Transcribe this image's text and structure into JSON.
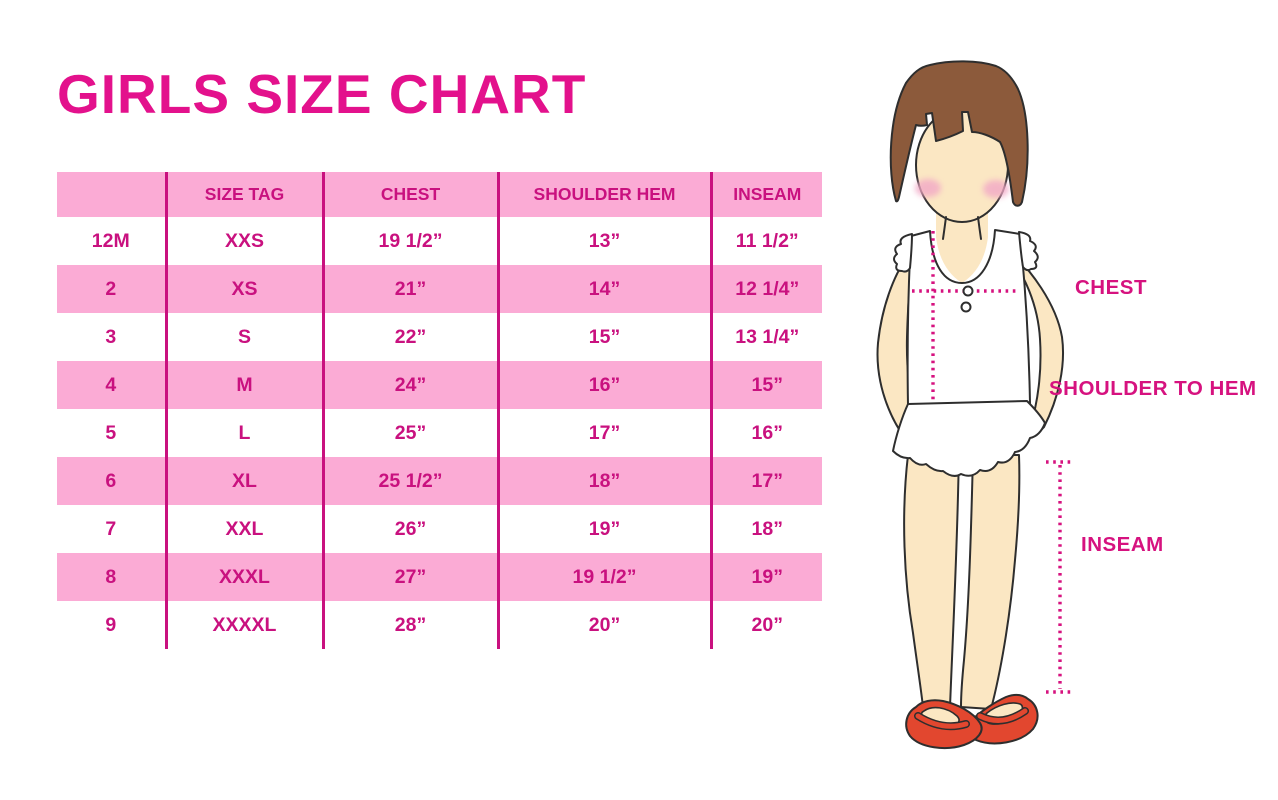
{
  "title": "GIRLS SIZE CHART",
  "colors": {
    "title_magenta": "#E3118C",
    "table_magenta": "#C9117F",
    "row_pink": "#FBABD5",
    "label_magenta": "#D6127F",
    "hair_brown": "#8C5A3B",
    "skin": "#FBE7C3",
    "blush": "#F2A8C6",
    "shoe_red": "#E2472F",
    "outline": "#2E2E2E",
    "background": "#FFFFFF"
  },
  "size_table": {
    "headers": [
      "",
      "SIZE TAG",
      "CHEST",
      "SHOULDER HEM",
      "INSEAM"
    ],
    "rows": [
      [
        "12M",
        "XXS",
        "19 1/2”",
        "13”",
        "11 1/2”"
      ],
      [
        "2",
        "XS",
        "21”",
        "14”",
        "12 1/4”"
      ],
      [
        "3",
        "S",
        "22”",
        "15”",
        "13 1/4”"
      ],
      [
        "4",
        "M",
        "24”",
        "16”",
        "15”"
      ],
      [
        "5",
        "L",
        "25”",
        "17”",
        "16”"
      ],
      [
        "6",
        "XL",
        "25 1/2”",
        "18”",
        "17”"
      ],
      [
        "7",
        "XXL",
        "26”",
        "19”",
        "18”"
      ],
      [
        "8",
        "XXXL",
        "27”",
        "19 1/2”",
        "19”"
      ],
      [
        "9",
        "XXXXL",
        "28”",
        "20”",
        "20”"
      ]
    ]
  },
  "figure": {
    "labels": {
      "chest": "CHEST",
      "shoulder_to_hem": "SHOULDER TO HEM",
      "inseam": "INSEAM"
    }
  }
}
